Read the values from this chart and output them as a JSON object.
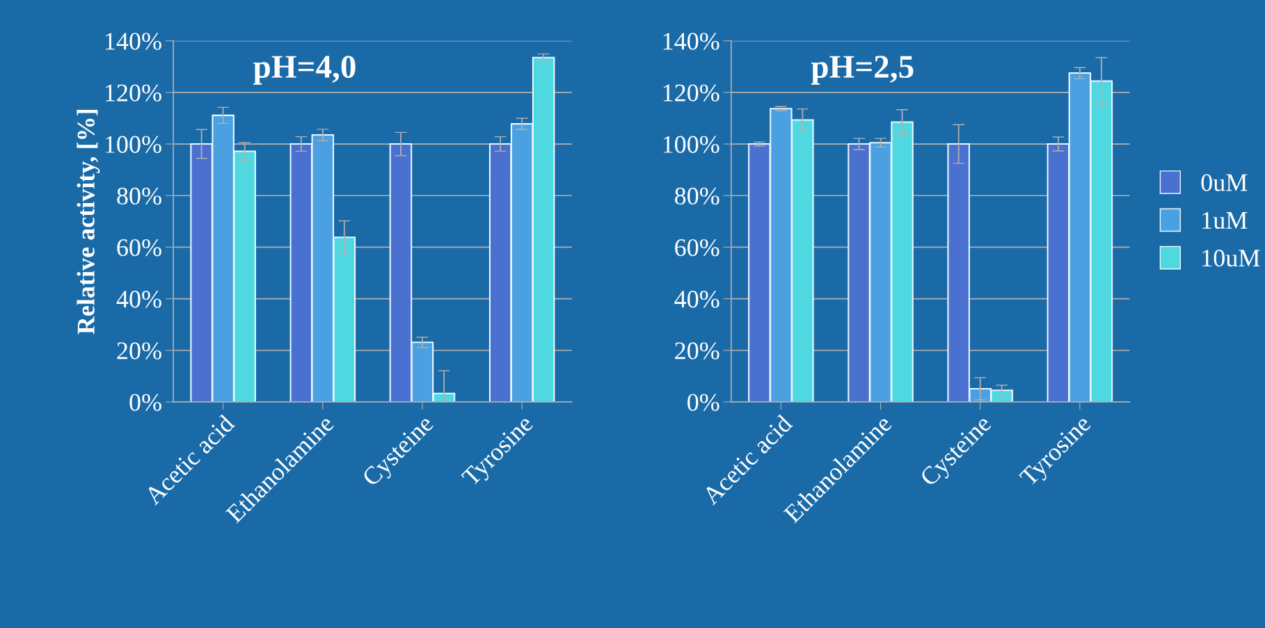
{
  "chart_data": [
    {
      "type": "bar",
      "title": "pH=4,0",
      "ylabel": "Relative activity, [%]",
      "categories": [
        "Acetic acid",
        "Ethanolamine",
        "Cysteine",
        "Tyrosine"
      ],
      "series": [
        {
          "color": "#4a70d0",
          "values": [
            100,
            100,
            100,
            100
          ],
          "errors": [
            5.6,
            2.8,
            4.5,
            2.8
          ]
        },
        {
          "color": "#4aa0e0",
          "values": [
            111.1,
            103.5,
            23.1,
            107.8
          ],
          "errors": [
            3.1,
            2.2,
            2.0,
            2.2
          ]
        },
        {
          "color": "#50d8e0",
          "values": [
            97.2,
            63.8,
            3.3,
            133.5
          ],
          "errors": [
            3.4,
            6.4,
            [
              0,
              12.1
            ],
            1.4
          ]
        }
      ],
      "ylim": [
        0,
        140
      ],
      "yticks": [
        {
          "value": 0,
          "label": "0%"
        },
        {
          "value": 20,
          "label": "20%"
        },
        {
          "value": 40,
          "label": "40%"
        },
        {
          "value": 60,
          "label": "60%"
        },
        {
          "value": 80,
          "label": "80%"
        },
        {
          "value": 100,
          "label": "100%"
        },
        {
          "value": 120,
          "label": "120%"
        },
        {
          "value": 140,
          "label": "140%"
        }
      ],
      "grid": "y"
    },
    {
      "type": "bar",
      "title": "pH=2,5",
      "categories": [
        "Acetic acid",
        "Ethanolamine",
        "Cysteine",
        "Tyrosine"
      ],
      "series": [
        {
          "name": "0uM",
          "color": "#4a70d0",
          "values": [
            100,
            100,
            100,
            100
          ],
          "errors": [
            0.8,
            2.2,
            7.5,
            2.7
          ]
        },
        {
          "name": "1uM",
          "color": "#4aa0e0",
          "values": [
            113.7,
            100.5,
            5.1,
            127.5
          ],
          "errors": [
            0.8,
            1.7,
            4.3,
            2.1
          ]
        },
        {
          "name": "10uM",
          "color": "#50d8e0",
          "values": [
            109.3,
            108.5,
            4.5,
            124.4
          ],
          "errors": [
            4.3,
            4.8,
            2.0,
            9.1
          ]
        }
      ],
      "ylim": [
        0,
        140
      ],
      "yticks": [
        {
          "value": 0,
          "label": "0%"
        },
        {
          "value": 20,
          "label": "20%"
        },
        {
          "value": 40,
          "label": "40%"
        },
        {
          "value": 60,
          "label": "60%"
        },
        {
          "value": 80,
          "label": "80%"
        },
        {
          "value": 100,
          "label": "100%"
        },
        {
          "value": 120,
          "label": "120%"
        },
        {
          "value": 140,
          "label": "140%"
        }
      ],
      "grid": "y",
      "legend": "right"
    }
  ]
}
